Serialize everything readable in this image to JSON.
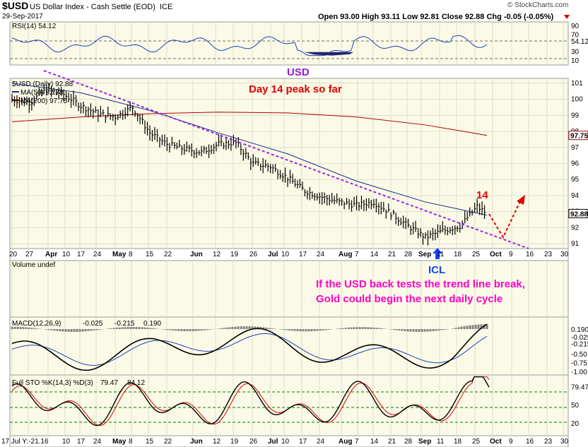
{
  "header": {
    "symbol": "$USD",
    "name": "US Dollar Index - Cash Settle (EOD)",
    "exchange": "ICE",
    "date": "29-Sep-2017",
    "brand": "© StockCharts.com",
    "ohlc_text": "Open 93.00  High 93.11  Low 92.81  Close 92.88  Chg -0.05 (-0.05%)"
  },
  "colors": {
    "panel_bg": "#fafae6",
    "price_bars": "#000000",
    "ma50": "#1a2a8c",
    "ma200": "#b00000",
    "trendline": "#9a26e0",
    "rsi_line": "#1f3fbf",
    "annotation_red": "#e00000",
    "annotation_purple": "#9b19d6",
    "annotation_magenta": "#ff00cc",
    "annotation_blue": "#1744ff",
    "hist_bar": "#808080"
  },
  "panels": {
    "rsi": {
      "legend": "RSI(14) 54.12",
      "ticks": [
        "90",
        "70",
        "54.12",
        "30",
        "10"
      ]
    },
    "price": {
      "legend_symbol": "$USD (Daily) 92.88",
      "legend_ma50": "MA(50) 92.78",
      "legend_ma200": "MA(200) 97.75",
      "ticks": [
        "101",
        "100",
        "99",
        "98",
        "97",
        "96",
        "95",
        "94",
        "93",
        "92",
        "91"
      ],
      "ma200_tag": "97.75",
      "close_tag": "92.88"
    },
    "volume": {
      "legend": "Volume undef"
    },
    "macd": {
      "legend_prefix": "MACD(12,26,9)",
      "legend_macd": "-0.025",
      "legend_signal": "-0.215",
      "legend_hist": "0.190",
      "ticks": [
        "0.190",
        "-0.025",
        "-0.215",
        "-0.50",
        "-0.75",
        "-1.00"
      ]
    },
    "sto": {
      "legend_prefix": "Full STO %K(14,3) %D(3)",
      "legend_k": "79.47",
      "legend_d": "84.12",
      "ticks": [
        "79.47",
        "50",
        "20"
      ]
    }
  },
  "x_axis": {
    "labels": [
      "20",
      "27",
      "Apr",
      "10",
      "17",
      "24",
      "May",
      "8",
      "15",
      "22",
      "Jun",
      "12",
      "19",
      "26",
      "Jul",
      "10",
      "17",
      "24",
      "Aug",
      "7",
      "14",
      "21",
      "28",
      "Sep",
      "11",
      "18",
      "25",
      "Oct",
      "9",
      "16",
      "23",
      "30"
    ],
    "bottom_labels": [
      "17 Jul Y:-21.16",
      "10",
      "17",
      "24",
      "May",
      "8",
      "15",
      "22",
      "Jun",
      "12",
      "19",
      "26",
      "Jul",
      "10",
      "17",
      "24",
      "Aug",
      "7",
      "14",
      "21",
      "28",
      "Sep",
      "11",
      "18",
      "25",
      "Oct",
      "9",
      "16",
      "23",
      "30"
    ]
  },
  "annotations": {
    "usd": "USD",
    "peak": "Day 14 peak so far",
    "day14": "14",
    "icl": "ICL",
    "note_line1": "If the USD back tests the trend line break,",
    "note_line2": "Gold could begin the next daily cycle"
  },
  "chart_data": {
    "type": "line",
    "title": "$USD US Dollar Index - Cash Settle (EOD)",
    "x_range": [
      "2017-03-20",
      "2017-10-30"
    ],
    "price": {
      "ylim": [
        90.7,
        101.3
      ],
      "series": [
        {
          "name": "$USD (Daily)",
          "x": [
            "2017-03-20",
            "2017-03-27",
            "2017-04-03",
            "2017-04-10",
            "2017-04-17",
            "2017-04-24",
            "2017-05-01",
            "2017-05-08",
            "2017-05-15",
            "2017-05-22",
            "2017-05-29",
            "2017-06-05",
            "2017-06-12",
            "2017-06-19",
            "2017-06-26",
            "2017-07-03",
            "2017-07-10",
            "2017-07-17",
            "2017-07-24",
            "2017-07-31",
            "2017-08-07",
            "2017-08-14",
            "2017-08-21",
            "2017-08-28",
            "2017-09-04",
            "2017-09-11",
            "2017-09-18",
            "2017-09-25",
            "2017-09-29"
          ],
          "values": [
            100.0,
            99.8,
            100.6,
            100.3,
            99.6,
            99.1,
            98.9,
            99.5,
            97.9,
            97.2,
            96.9,
            96.7,
            97.2,
            97.3,
            96.0,
            95.8,
            95.1,
            94.3,
            93.9,
            93.6,
            93.4,
            93.6,
            92.9,
            92.1,
            91.4,
            91.8,
            92.1,
            93.3,
            92.88
          ]
        },
        {
          "name": "MA(50)",
          "x": [
            "2017-03-20",
            "2017-04-17",
            "2017-05-15",
            "2017-06-12",
            "2017-07-10",
            "2017-08-07",
            "2017-09-04",
            "2017-09-29"
          ],
          "values": [
            101.0,
            100.4,
            99.3,
            97.9,
            96.6,
            94.9,
            93.6,
            92.78
          ]
        },
        {
          "name": "MA(200)",
          "x": [
            "2017-03-20",
            "2017-04-17",
            "2017-05-15",
            "2017-06-12",
            "2017-07-10",
            "2017-08-07",
            "2017-09-04",
            "2017-09-29"
          ],
          "values": [
            98.6,
            98.9,
            99.1,
            99.2,
            99.15,
            98.9,
            98.4,
            97.75
          ]
        }
      ]
    },
    "rsi": {
      "ylim": [
        0,
        100
      ],
      "last": 54.12,
      "levels": [
        70,
        30
      ]
    },
    "macd": {
      "macd": -0.025,
      "signal": -0.215,
      "histogram": 0.19
    },
    "stochastic": {
      "k": 79.47,
      "d": 84.12,
      "levels": [
        80,
        50,
        20
      ]
    }
  }
}
